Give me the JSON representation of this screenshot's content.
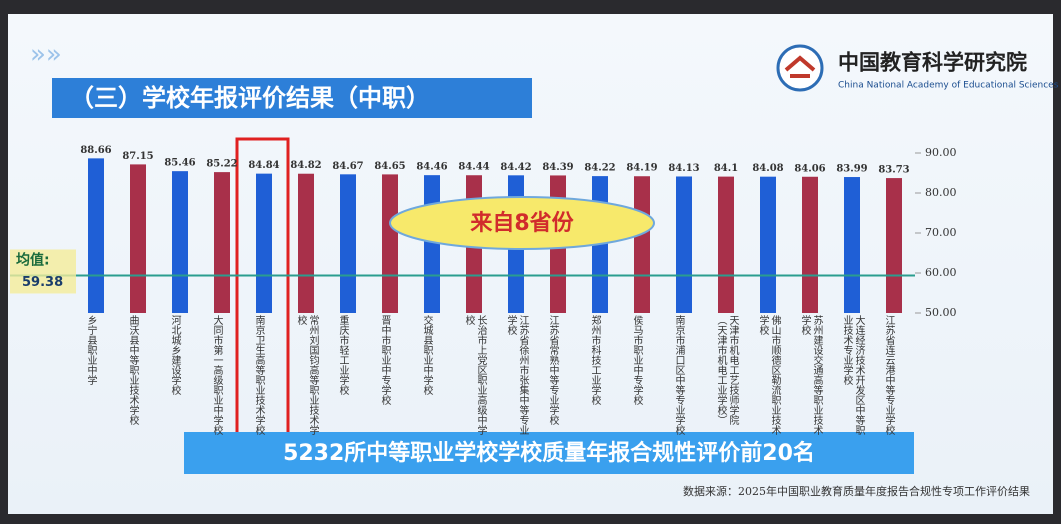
{
  "header": {
    "title": "（三）学校年报评价结果（中职）",
    "org_name": "中国教育科学研究院",
    "org_name_en": "China National Academy of Educational Sciences"
  },
  "chart_data": {
    "type": "bar",
    "categories": [
      "乡宁县职业中学",
      "曲沃县中等职业技术学校",
      "河北城乡建设学校",
      "大同市第一高级职业中学校",
      "南京卫生高等职业技术学校",
      "常州刘国钧高等职业技术学校",
      "重庆市轻工业学校",
      "晋中市职业中专学校",
      "交城县职业中学校",
      "长治市上党区职业高级中学校",
      "江苏省徐州市张集中等专业学校",
      "江苏省常熟中等专业学校",
      "郑州市科技工业学校",
      "侯马市职业中专学校",
      "南京市浦口区中等专业学校",
      "天津市机电工艺技师学院（天津市机电工业学校）",
      "佛山市顺德区勒流职业技术学校",
      "苏州建设交通高等职业技术学校",
      "大连经济技术开发区中等职业技术专业学校",
      "江苏省连云港中等专业学校"
    ],
    "values": [
      88.66,
      87.15,
      85.46,
      85.22,
      84.84,
      84.82,
      84.67,
      84.65,
      84.46,
      84.44,
      84.42,
      84.39,
      84.22,
      84.19,
      84.13,
      84.1,
      84.08,
      84.06,
      83.99,
      83.73
    ],
    "colors": [
      "#1f5fd6",
      "#a8304a",
      "#1f5fd6",
      "#a8304a",
      "#1f5fd6",
      "#a8304a",
      "#1f5fd6",
      "#a8304a",
      "#1f5fd6",
      "#a8304a",
      "#1f5fd6",
      "#a8304a",
      "#1f5fd6",
      "#a8304a",
      "#1f5fd6",
      "#a8304a",
      "#1f5fd6",
      "#a8304a",
      "#1f5fd6",
      "#a8304a"
    ],
    "ylim": [
      50,
      91
    ],
    "yticks": [
      {
        "value": 50,
        "label": "50.00"
      },
      {
        "value": 60,
        "label": "60.00"
      },
      {
        "value": 70,
        "label": "70.00"
      },
      {
        "value": 80,
        "label": "80.00"
      },
      {
        "value": 90,
        "label": "90.00"
      }
    ],
    "mean": {
      "label": "均值:",
      "value": 59.38
    },
    "annotation": "来自8省份",
    "banner": "5232所中等职业学校学校质量年报合规性评价前20名",
    "source": "数据来源：2025年中国职业教育质量年度报告合规性专项工作评价结果"
  }
}
